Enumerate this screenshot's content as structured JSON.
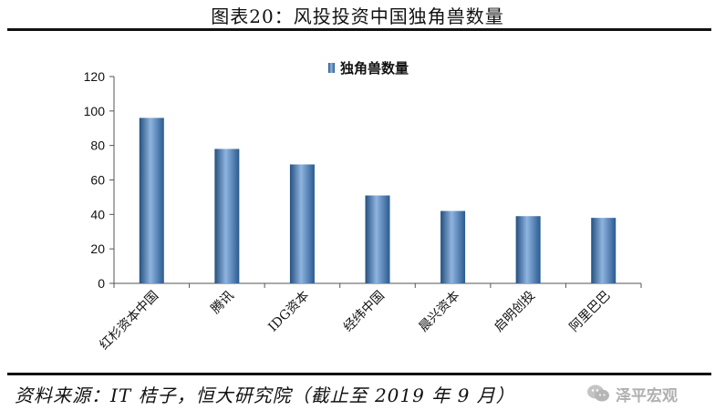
{
  "title": "图表20：风投投资中国独角兽数量",
  "source": "资料来源：IT 桔子，恒大研究院（截止至 2019 年 9 月）",
  "watermark": {
    "text": "泽平宏观",
    "icon": "wechat-icon"
  },
  "colors": {
    "bar_dark": "#2f5d96",
    "bar_light": "#8fb4e0",
    "axis": "#555555",
    "rule": "#111111"
  },
  "chart_data": {
    "type": "bar",
    "categories": [
      "红杉资本中国",
      "腾讯",
      "IDG资本",
      "经纬中国",
      "晨兴资本",
      "启明创投",
      "阿里巴巴"
    ],
    "series": [
      {
        "name": "独角兽数量",
        "values": [
          96,
          78,
          69,
          51,
          42,
          39,
          38
        ]
      }
    ],
    "yticks": [
      0,
      20,
      40,
      60,
      80,
      100,
      120
    ],
    "ylim": [
      0,
      120
    ],
    "legend": "top-center",
    "grid": false
  }
}
